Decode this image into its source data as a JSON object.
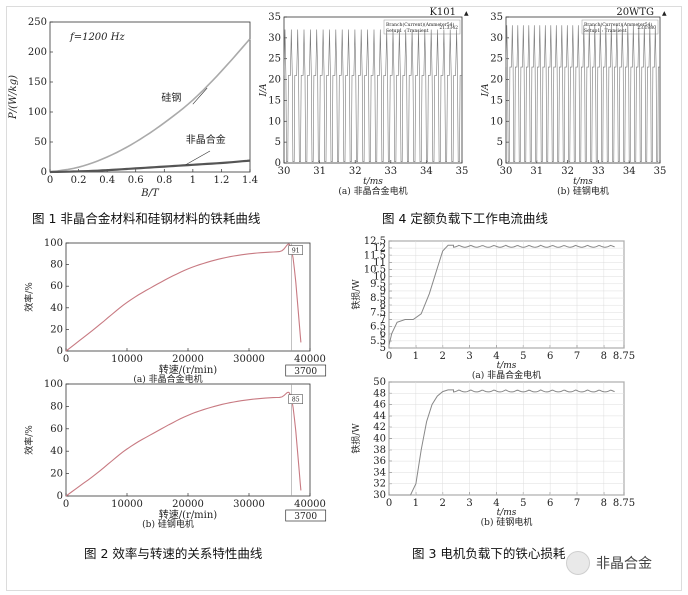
{
  "captions": {
    "fig1": "图 1  非晶合金材料和硅钢材料的铁耗曲线",
    "fig4": "图 4  定额负载下工作电流曲线",
    "fig2": "图 2  效率与转速的关系特性曲线",
    "fig3": "图 3  电机负载下的铁心损耗"
  },
  "watermark": {
    "text": "非晶合金",
    "logo_icon": "wechat-logo-icon"
  },
  "chart_data": [
    {
      "id": "fig1",
      "type": "line",
      "xlabel": "B/T",
      "ylabel": "P/(W/kg)",
      "annotation": "f=1200 Hz",
      "xlim": [
        0,
        1.4
      ],
      "ylim": [
        0,
        250
      ],
      "xticks": [
        "0",
        "0.2",
        "0.4",
        "0.6",
        "0.8",
        "1",
        "1.2",
        "1.4"
      ],
      "yticks": [
        "0",
        "50",
        "100",
        "150",
        "200",
        "250"
      ],
      "series": [
        {
          "name": "硅钢",
          "x": [
            0,
            0.2,
            0.4,
            0.6,
            0.8,
            1.0,
            1.2,
            1.4
          ],
          "values": [
            0,
            8,
            25,
            50,
            82,
            120,
            168,
            222
          ]
        },
        {
          "name": "非晶合金",
          "x": [
            0,
            0.2,
            0.4,
            0.6,
            0.8,
            1.0,
            1.2,
            1.4
          ],
          "values": [
            0,
            1,
            3,
            6,
            9,
            12,
            15,
            19
          ]
        }
      ]
    },
    {
      "id": "fig4a",
      "type": "line",
      "title": "K101",
      "subtitle": "(a) 非晶合金电机",
      "xlabel": "t/ms",
      "ylabel": "I/A",
      "xlim": [
        30,
        35
      ],
      "ylim": [
        0,
        35
      ],
      "xticks": [
        "30",
        "31",
        "32",
        "33",
        "34",
        "35"
      ],
      "yticks": [
        "0",
        "5",
        "10",
        "15",
        "20",
        "25",
        "30",
        "35"
      ],
      "legend": [
        "Branch(Current)(Ammeter54)",
        "Setup1 : Transient"
      ],
      "legend_value": "21.3342",
      "peak": 32,
      "base": 21,
      "cycles": 28
    },
    {
      "id": "fig4b",
      "type": "line",
      "title": "20WTG",
      "subtitle": "(b) 硅钢电机",
      "xlabel": "t/ms",
      "ylabel": "I/A",
      "xlim": [
        30,
        35
      ],
      "ylim": [
        0,
        35
      ],
      "xticks": [
        "30",
        "31",
        "32",
        "33",
        "34",
        "35"
      ],
      "yticks": [
        "0",
        "5",
        "10",
        "15",
        "20",
        "25",
        "30",
        "35"
      ],
      "legend": [
        "Branch(Current)(Ammeter54)",
        "Setup1 : Transient"
      ],
      "legend_value": "23.1980",
      "peak": 33,
      "base": 23,
      "cycles": 28
    },
    {
      "id": "fig2a",
      "type": "line",
      "subtitle": "(a) 非晶合金电机",
      "xlabel": "转速/(r/min)",
      "ylabel": "效率/%",
      "xlim": [
        0,
        40000
      ],
      "ylim": [
        0,
        100
      ],
      "xticks": [
        "0",
        "10000",
        "20000",
        "30000",
        "40000"
      ],
      "yticks": [
        "0",
        "20",
        "40",
        "60",
        "80",
        "100"
      ],
      "marker_x_label": "3700",
      "marker_y_label": "91",
      "x": [
        0,
        5000,
        10000,
        15000,
        20000,
        25000,
        30000,
        35000,
        37000,
        38500
      ],
      "values": [
        0,
        22,
        45,
        62,
        76,
        85,
        90,
        92,
        93,
        8
      ]
    },
    {
      "id": "fig2b",
      "type": "line",
      "subtitle": "(b) 硅钢电机",
      "xlabel": "转速/(r/min)",
      "ylabel": "效率/%",
      "xlim": [
        0,
        40000
      ],
      "ylim": [
        0,
        100
      ],
      "xticks": [
        "0",
        "10000",
        "20000",
        "30000",
        "40000"
      ],
      "yticks": [
        "0",
        "20",
        "40",
        "60",
        "80",
        "100"
      ],
      "marker_x_label": "3700",
      "marker_y_label": "85",
      "x": [
        0,
        5000,
        10000,
        15000,
        20000,
        25000,
        30000,
        35000,
        37000,
        38500
      ],
      "values": [
        0,
        20,
        42,
        58,
        72,
        81,
        86,
        88,
        86,
        5
      ]
    },
    {
      "id": "fig3a",
      "type": "line",
      "subtitle": "(a) 非晶合金电机",
      "xlabel": "t/ms",
      "ylabel": "铁损/W",
      "xlim": [
        0,
        8.75
      ],
      "ylim": [
        5,
        12.5
      ],
      "xticks": [
        "0",
        "1",
        "2",
        "3",
        "4",
        "5",
        "6",
        "7",
        "8",
        "8.75"
      ],
      "yticks": [
        "5",
        "5.5",
        "6",
        "6.5",
        "7",
        "7.5",
        "8",
        "8.5",
        "9",
        "9.5",
        "10",
        "10.5",
        "11",
        "11.5",
        "12",
        "12.5"
      ],
      "x": [
        0,
        0.1,
        0.3,
        0.6,
        0.9,
        1.2,
        1.5,
        1.8,
        2.0,
        2.2,
        2.4
      ],
      "values": [
        5.2,
        6.0,
        6.8,
        7.0,
        7.0,
        7.4,
        8.8,
        10.6,
        11.8,
        12.2,
        12.2
      ],
      "steady": 12.2
    },
    {
      "id": "fig3b",
      "type": "line",
      "subtitle": "(b) 硅钢电机",
      "xlabel": "t/ms",
      "ylabel": "铁损/W",
      "xlim": [
        0,
        8.75
      ],
      "ylim": [
        30,
        50
      ],
      "xticks": [
        "0",
        "1",
        "2",
        "3",
        "4",
        "5",
        "6",
        "7",
        "8",
        "8.75"
      ],
      "yticks": [
        "30",
        "32",
        "34",
        "36",
        "38",
        "40",
        "42",
        "44",
        "46",
        "48",
        "50"
      ],
      "x": [
        0,
        0.8,
        1.0,
        1.2,
        1.4,
        1.6,
        1.8,
        2.0,
        2.2,
        2.4
      ],
      "values": [
        30,
        30,
        32,
        38,
        43,
        46,
        47.5,
        48.3,
        48.6,
        48.6
      ],
      "steady": 48.6
    }
  ]
}
